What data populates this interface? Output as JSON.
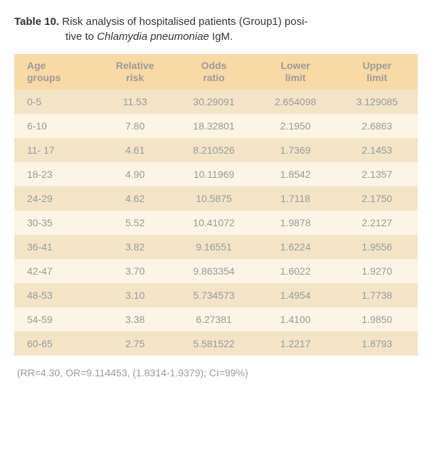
{
  "caption": {
    "label": "Table 10.",
    "text_line1": "Risk analysis of hospitalised patients (Group1) posi-",
    "text_line2_a": "tive to ",
    "italic": "Chlamydia pneumoniae",
    "text_line2_b": " IgM."
  },
  "table": {
    "columns": [
      {
        "line1": "Age",
        "line2": "groups"
      },
      {
        "line1": "Relative",
        "line2": "risk"
      },
      {
        "line1": "Odds",
        "line2": "ratio"
      },
      {
        "line1": "Lower",
        "line2": "limit"
      },
      {
        "line1": "Upper",
        "line2": "limit"
      }
    ],
    "rows": [
      [
        "0-5",
        "11.53",
        "30.29091",
        "2.654098",
        "3.129085"
      ],
      [
        "6-10",
        "7.80",
        "18.32801",
        "2.1950",
        "2.6863"
      ],
      [
        "11- 17",
        "4.61",
        "8.210526",
        "1.7369",
        "2.1453"
      ],
      [
        "18-23",
        "4.90",
        "10.11969",
        "1.8542",
        "2.1357"
      ],
      [
        "24-29",
        "4.62",
        "10.5875",
        "1.7118",
        "2.1750"
      ],
      [
        "30-35",
        "5.52",
        "10.41072",
        "1.9878",
        "2.2127"
      ],
      [
        "36-41",
        "3.82",
        "9.16551",
        "1.6224",
        "1.9556"
      ],
      [
        "42-47",
        "3.70",
        "9.863354",
        "1.6022",
        "1.9270"
      ],
      [
        "48-53",
        "3.10",
        "5.734573",
        "1.4954",
        "1.7738"
      ],
      [
        "54-59",
        "3.38",
        "6.27381",
        "1.4100",
        "1.9850"
      ],
      [
        "60-65",
        "2.75",
        "5.581522",
        "1.2217",
        "1.8793"
      ]
    ],
    "styling": {
      "header_bg": "#f9d9a6",
      "row_alt_bg_dark": "#f3e4c8",
      "row_alt_bg_light": "#fcf4e4",
      "text_color": "#9a9a9a",
      "font_size": 14
    }
  },
  "footnote": "(RR=4.30, OR=9.114453, (1.8314-1.9379); CI=99%)"
}
